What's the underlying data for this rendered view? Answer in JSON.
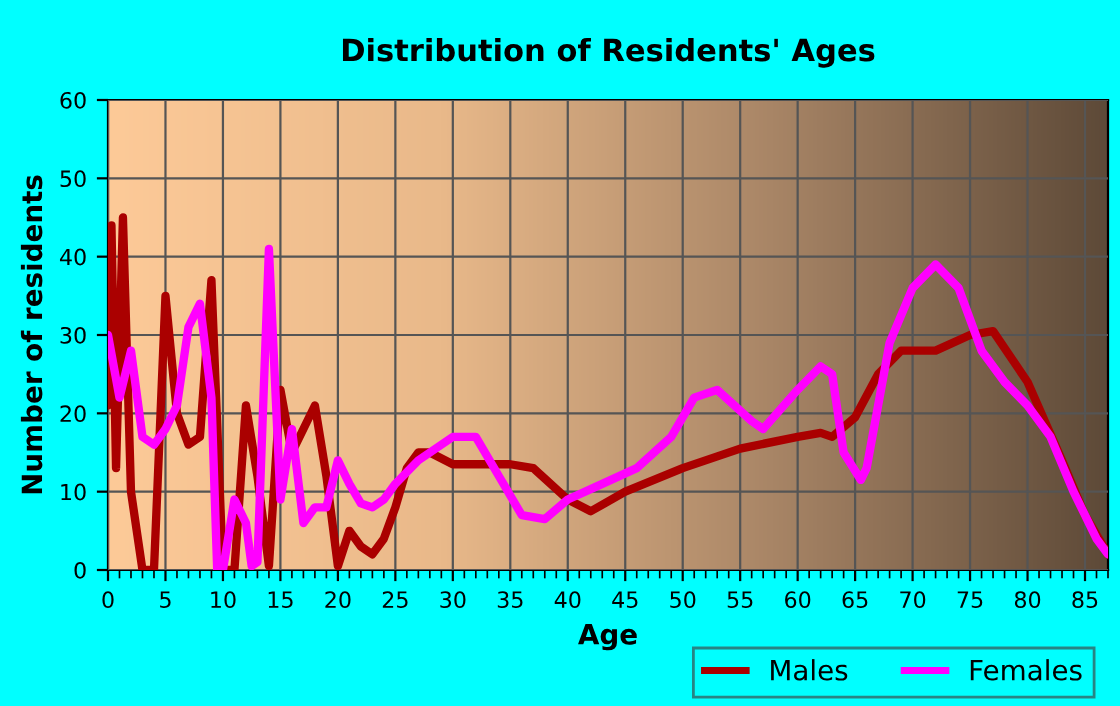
{
  "chart_data": {
    "type": "line",
    "title": "Distribution of Residents' Ages",
    "xlabel": "Age",
    "ylabel": "Number of residents",
    "xlim": [
      0,
      87
    ],
    "xticks": [
      0,
      5,
      10,
      15,
      20,
      25,
      30,
      35,
      40,
      45,
      50,
      55,
      60,
      65,
      70,
      75,
      80,
      85
    ],
    "ylim": [
      0,
      60
    ],
    "yticks": [
      0,
      10,
      20,
      30,
      40,
      50,
      60
    ],
    "grid": true,
    "legend": "bottom right",
    "marker": "none",
    "line_style": "solid",
    "series": [
      {
        "name": "Males",
        "color": "#aa0000",
        "x": [
          0,
          0.3,
          0.7,
          1.3,
          2,
          3,
          4,
          5,
          6,
          7,
          8,
          9,
          10,
          11,
          12,
          13,
          14,
          15,
          16,
          17,
          18,
          19,
          20,
          21,
          22,
          23,
          24,
          25,
          26,
          27,
          28,
          30,
          32,
          35,
          37,
          40,
          42,
          45,
          50,
          55,
          60,
          62,
          63,
          65,
          67,
          69,
          72,
          75,
          77,
          80,
          83,
          85,
          87
        ],
        "values": [
          21,
          44,
          13,
          45,
          10,
          0,
          0,
          35,
          20,
          16,
          17,
          37,
          0,
          0,
          21,
          12,
          0.5,
          23,
          15,
          18,
          21,
          12,
          0.5,
          5,
          3,
          2,
          4,
          8,
          13,
          15,
          15,
          13.5,
          13.5,
          13.5,
          13,
          9,
          7.5,
          10,
          13,
          15.5,
          17,
          17.5,
          17,
          19.5,
          25,
          28,
          28,
          30,
          30.5,
          24,
          14,
          7,
          2
        ]
      },
      {
        "name": "Females",
        "color": "#ff00ff",
        "x": [
          0,
          1,
          2,
          3,
          4,
          5,
          6,
          7,
          8,
          9,
          9.5,
          10,
          11,
          12,
          12.5,
          13,
          14,
          15,
          16,
          17,
          18,
          19,
          20,
          21,
          22,
          23,
          24,
          25,
          27,
          30,
          32,
          34,
          36,
          38,
          40,
          43,
          46,
          49,
          51,
          53,
          56,
          57,
          60,
          62,
          63,
          64,
          65.5,
          66,
          68,
          70,
          72,
          74,
          76,
          78,
          80,
          82,
          84,
          86,
          87
        ],
        "values": [
          30,
          22,
          28,
          17,
          16,
          18,
          21,
          31,
          34,
          22,
          0,
          0,
          9,
          6,
          0.5,
          1,
          41,
          9,
          18,
          6,
          8,
          8,
          14,
          11,
          8.5,
          8,
          9,
          11,
          14,
          17,
          17,
          12,
          7,
          6.5,
          9,
          11,
          13,
          17,
          22,
          23,
          19,
          18,
          23,
          26,
          25,
          15,
          11.5,
          13,
          29,
          36,
          39,
          36,
          28,
          24,
          21,
          17,
          10,
          4,
          2
        ]
      }
    ]
  }
}
